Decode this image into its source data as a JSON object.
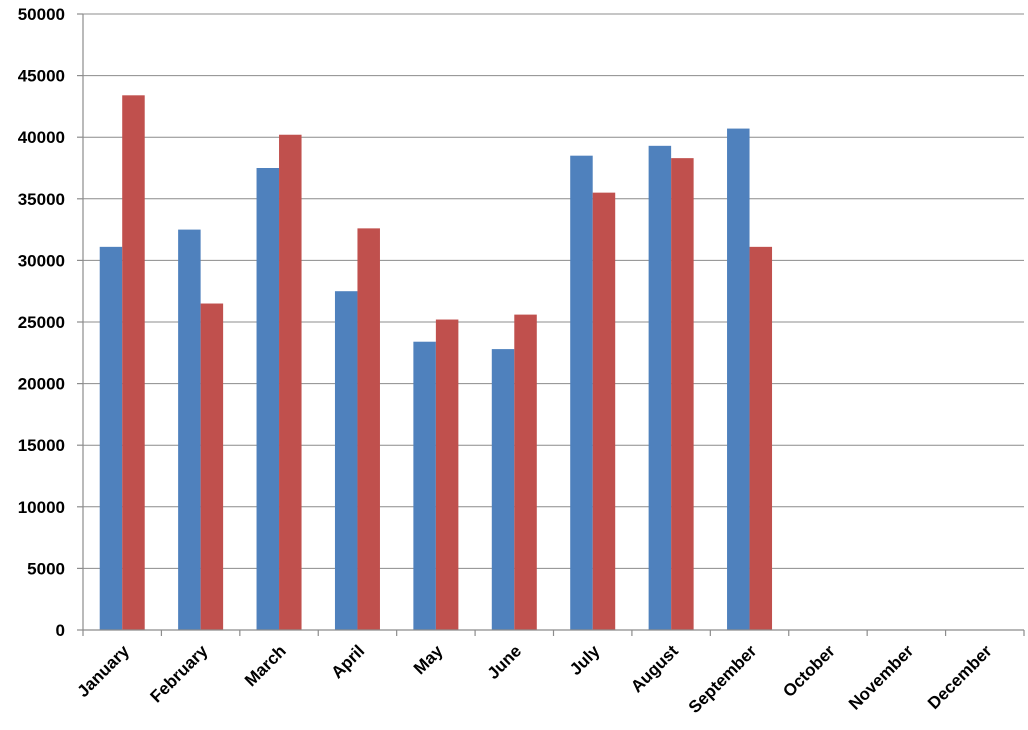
{
  "chart_data": {
    "type": "bar",
    "categories": [
      "January",
      "February",
      "March",
      "April",
      "May",
      "June",
      "July",
      "August",
      "September",
      "October",
      "November",
      "December"
    ],
    "series": [
      {
        "color": "#4f81bd",
        "values": [
          31100,
          32500,
          37500,
          27500,
          23400,
          22800,
          38500,
          39300,
          40700,
          null,
          null,
          null
        ]
      },
      {
        "color": "#c0504d",
        "values": [
          43400,
          26500,
          40200,
          32600,
          25200,
          25600,
          35500,
          38300,
          31100,
          null,
          null,
          null
        ]
      }
    ],
    "yticks": [
      "0",
      "5000",
      "10000",
      "15000",
      "20000",
      "25000",
      "30000",
      "35000",
      "40000",
      "45000",
      "50000"
    ],
    "ylim": [
      0,
      50000
    ],
    "grid": true,
    "legend": "none",
    "title": "",
    "xlabel": "",
    "ylabel": ""
  }
}
